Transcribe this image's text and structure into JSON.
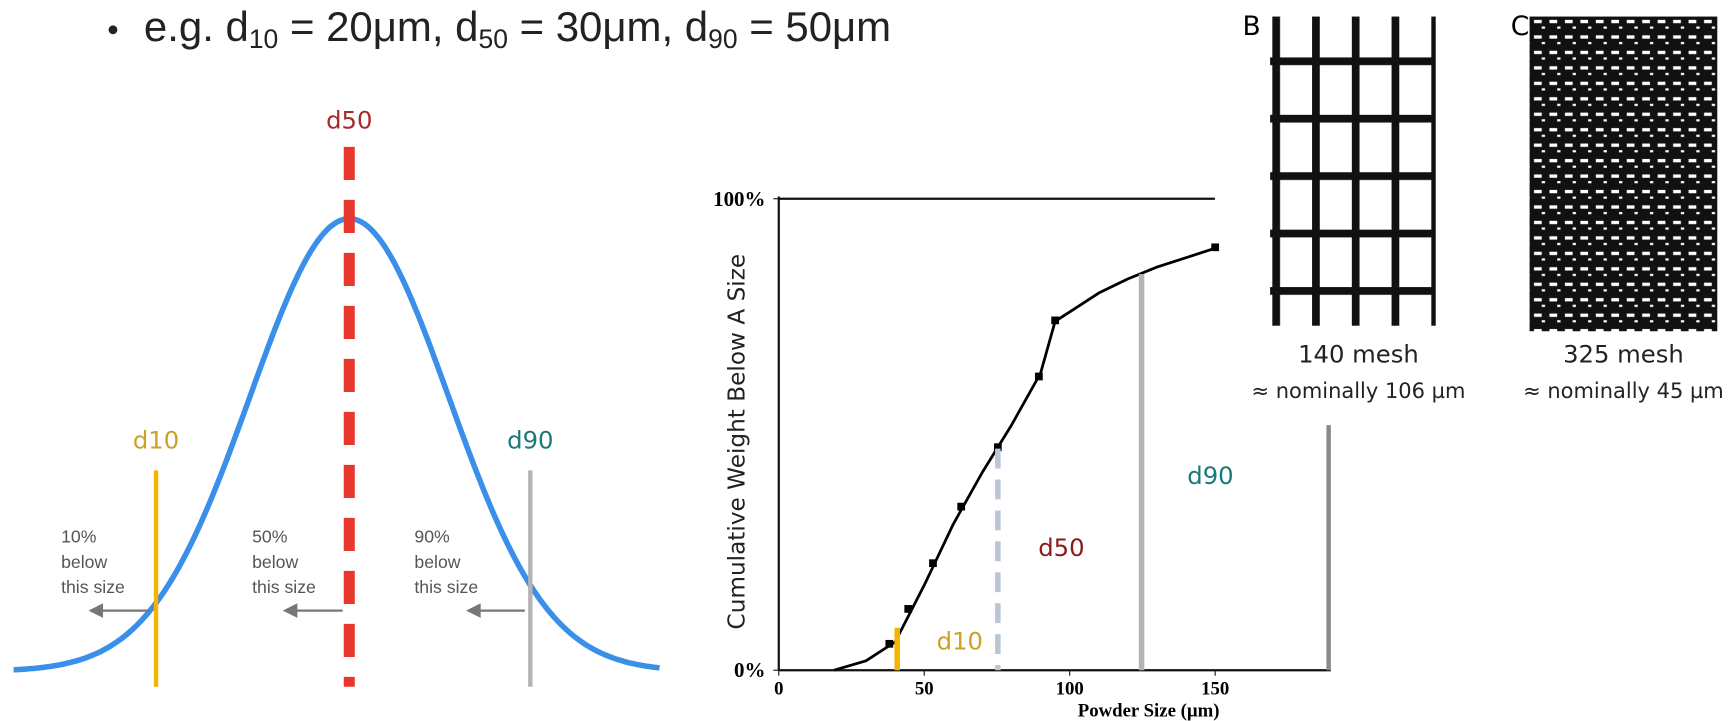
{
  "bullet": {
    "parts": [
      "e.g. d",
      "10",
      " = 20μm, d",
      "50",
      " = 30μm, d",
      "90",
      " = 50μm"
    ]
  },
  "diagram": {
    "d50": "d50",
    "d10": "d10",
    "d90": "d90",
    "notes": [
      [
        "10%",
        "below",
        "this size"
      ],
      [
        "50%",
        "below",
        "this size"
      ],
      [
        "90%",
        "below",
        "this size"
      ]
    ]
  },
  "meshes": [
    {
      "letter": "B",
      "name": "140 mesh",
      "size": "≈ nominally 106 µm"
    },
    {
      "letter": "C",
      "name": "325 mesh",
      "size": "≈ nominally 45 µm"
    }
  ],
  "chart_data": {
    "type": "line",
    "xlabel": "Powder Size (µm)",
    "ylabel": "Cumulative Weight Below A Size",
    "xlim": [
      0,
      189
    ],
    "ylim": [
      0,
      100
    ],
    "xticks": [
      0,
      50,
      100,
      150
    ],
    "yticks": [
      {
        "value": 0,
        "label": "0%"
      },
      {
        "value": 100,
        "label": "100%"
      }
    ],
    "grid": false,
    "series": [
      {
        "color": "#000000",
        "x": [
          19,
          30,
          40,
          50,
          60,
          70,
          80,
          90,
          95,
          100,
          110,
          120,
          130,
          140,
          150
        ],
        "values": [
          0,
          2,
          6,
          18,
          31,
          42,
          52,
          63,
          74,
          76,
          80,
          83,
          85.5,
          87.5,
          89.5
        ]
      },
      {
        "color": "#000000",
        "marker": "square",
        "x": [
          38,
          44.5,
          53,
          62.7,
          75.3,
          89.4,
          95,
          150
        ],
        "values": [
          5.6,
          13,
          22.7,
          34.7,
          47.3,
          62.3,
          74.2,
          89.7
        ]
      }
    ],
    "annotations": [
      {
        "text": "d10",
        "x": 40.7,
        "y": 9,
        "color": "#f5b400",
        "label_color": "#c9a227"
      },
      {
        "text": "d50",
        "x": 75.3,
        "y": 47,
        "color": "#b8c7d6",
        "label_color": "#8b1a1a",
        "dashed": true
      },
      {
        "text": "d90",
        "x": 124.7,
        "y": 84,
        "color": "#b4b4b4",
        "label_color": "#1a7a7a"
      }
    ]
  }
}
